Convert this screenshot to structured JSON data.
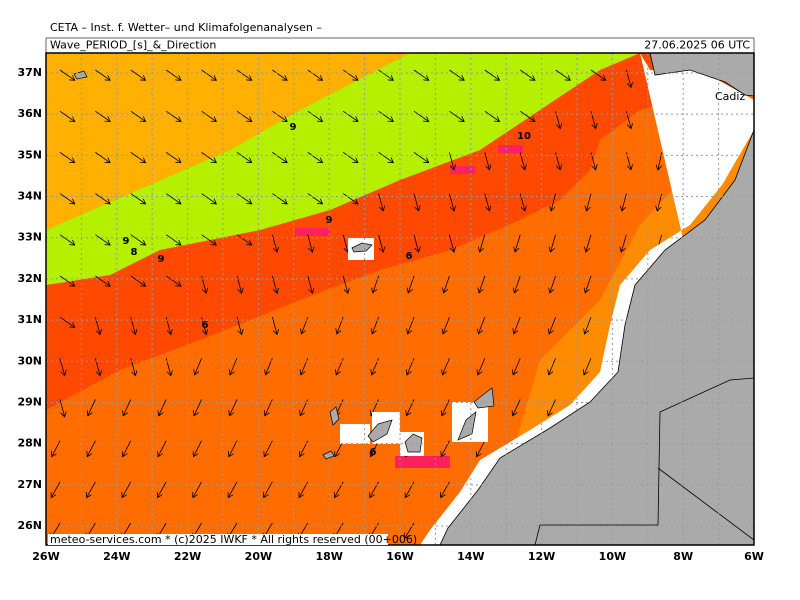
{
  "header": {
    "institute": "CETA – Inst. f. Wetter– und Klimafolgenanalysen –",
    "title": "Wave_PERIOD_[s]_&_Direction",
    "valid_time": "27.06.2025 06 UTC"
  },
  "axes": {
    "lon_labels": [
      "26W",
      "24W",
      "22W",
      "20W",
      "18W",
      "16W",
      "14W",
      "12W",
      "10W",
      "8W",
      "6W"
    ],
    "lat_labels": [
      "26N",
      "27N",
      "28N",
      "29N",
      "30N",
      "31N",
      "32N",
      "33N",
      "34N",
      "35N",
      "36N",
      "37N"
    ]
  },
  "contour_labels": [
    "9",
    "10",
    "9",
    "9",
    "8",
    "9",
    "6",
    "6",
    "6"
  ],
  "places": {
    "city": "Cadiz"
  },
  "footer": "meteo-services.com * (c)2025 IWKF * All rights reserved (00+006)"
}
